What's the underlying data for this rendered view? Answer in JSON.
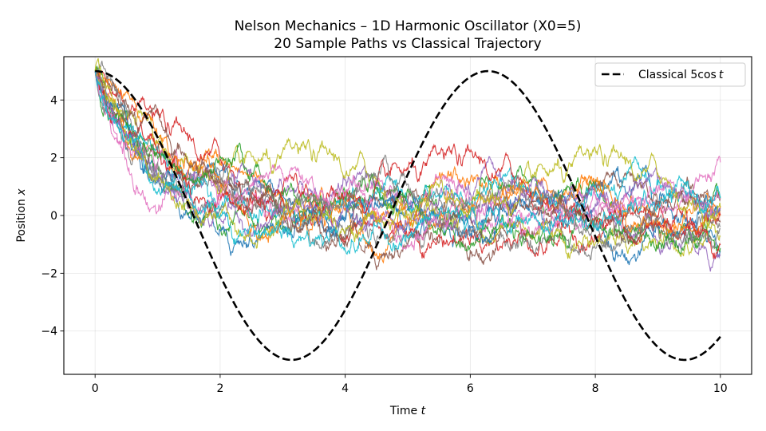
{
  "chart_data": {
    "type": "line",
    "title": "Nelson Mechanics – 1D Harmonic Oscillator (X0=5)",
    "subtitle": "20 Sample Paths vs Classical Trajectory",
    "xlabel": "Time t",
    "ylabel": "Position x",
    "xlim": [
      -0.5,
      10.5
    ],
    "ylim": [
      -5.5,
      5.5
    ],
    "xticks": [
      0,
      2,
      4,
      6,
      8,
      10
    ],
    "yticks": [
      -4,
      -2,
      0,
      2,
      4
    ],
    "grid": true,
    "legend_position": "upper right",
    "series": [
      {
        "name": "Classical 5cos t",
        "style": "dashed",
        "color": "#000000",
        "formula": "5*cos(t)",
        "x": [
          0,
          1,
          2,
          3,
          3.14,
          4,
          5,
          6,
          6.28,
          7,
          8,
          9,
          9.42,
          10
        ],
        "values": [
          5.0,
          2.7,
          -2.08,
          -4.95,
          -5.0,
          -3.27,
          1.42,
          4.8,
          5.0,
          3.77,
          -0.73,
          -4.56,
          -5.0,
          -4.2
        ]
      },
      {
        "name": "Sample paths (20)",
        "count": 20,
        "x0": 5,
        "description": "Stochastic paths decaying from x=5 toward 0 by t≈2.5, then fluctuating roughly within [-2.3, 2.3]",
        "mean_approx": {
          "x": [
            0,
            1,
            2,
            3,
            4,
            6,
            8,
            10
          ],
          "values": [
            5.0,
            2.4,
            0.8,
            0.2,
            0.0,
            0.1,
            0.0,
            0.2
          ]
        },
        "range_approx": {
          "min": -2.3,
          "max": 5.4
        }
      }
    ]
  },
  "labels": {
    "title_line1": "Nelson Mechanics – 1D Harmonic Oscillator (X0=5)",
    "title_line2": "20 Sample Paths vs Classical Trajectory",
    "xlabel_text": "Time ",
    "xlabel_var": "t",
    "ylabel_text": "Position ",
    "ylabel_var": "x",
    "legend_text": "Classical 5cos",
    "legend_var": "t"
  },
  "colors": [
    "#1f77b4",
    "#ff7f0e",
    "#2ca02c",
    "#d62728",
    "#9467bd",
    "#8c564b",
    "#e377c2",
    "#7f7f7f",
    "#bcbd22",
    "#17becf"
  ]
}
